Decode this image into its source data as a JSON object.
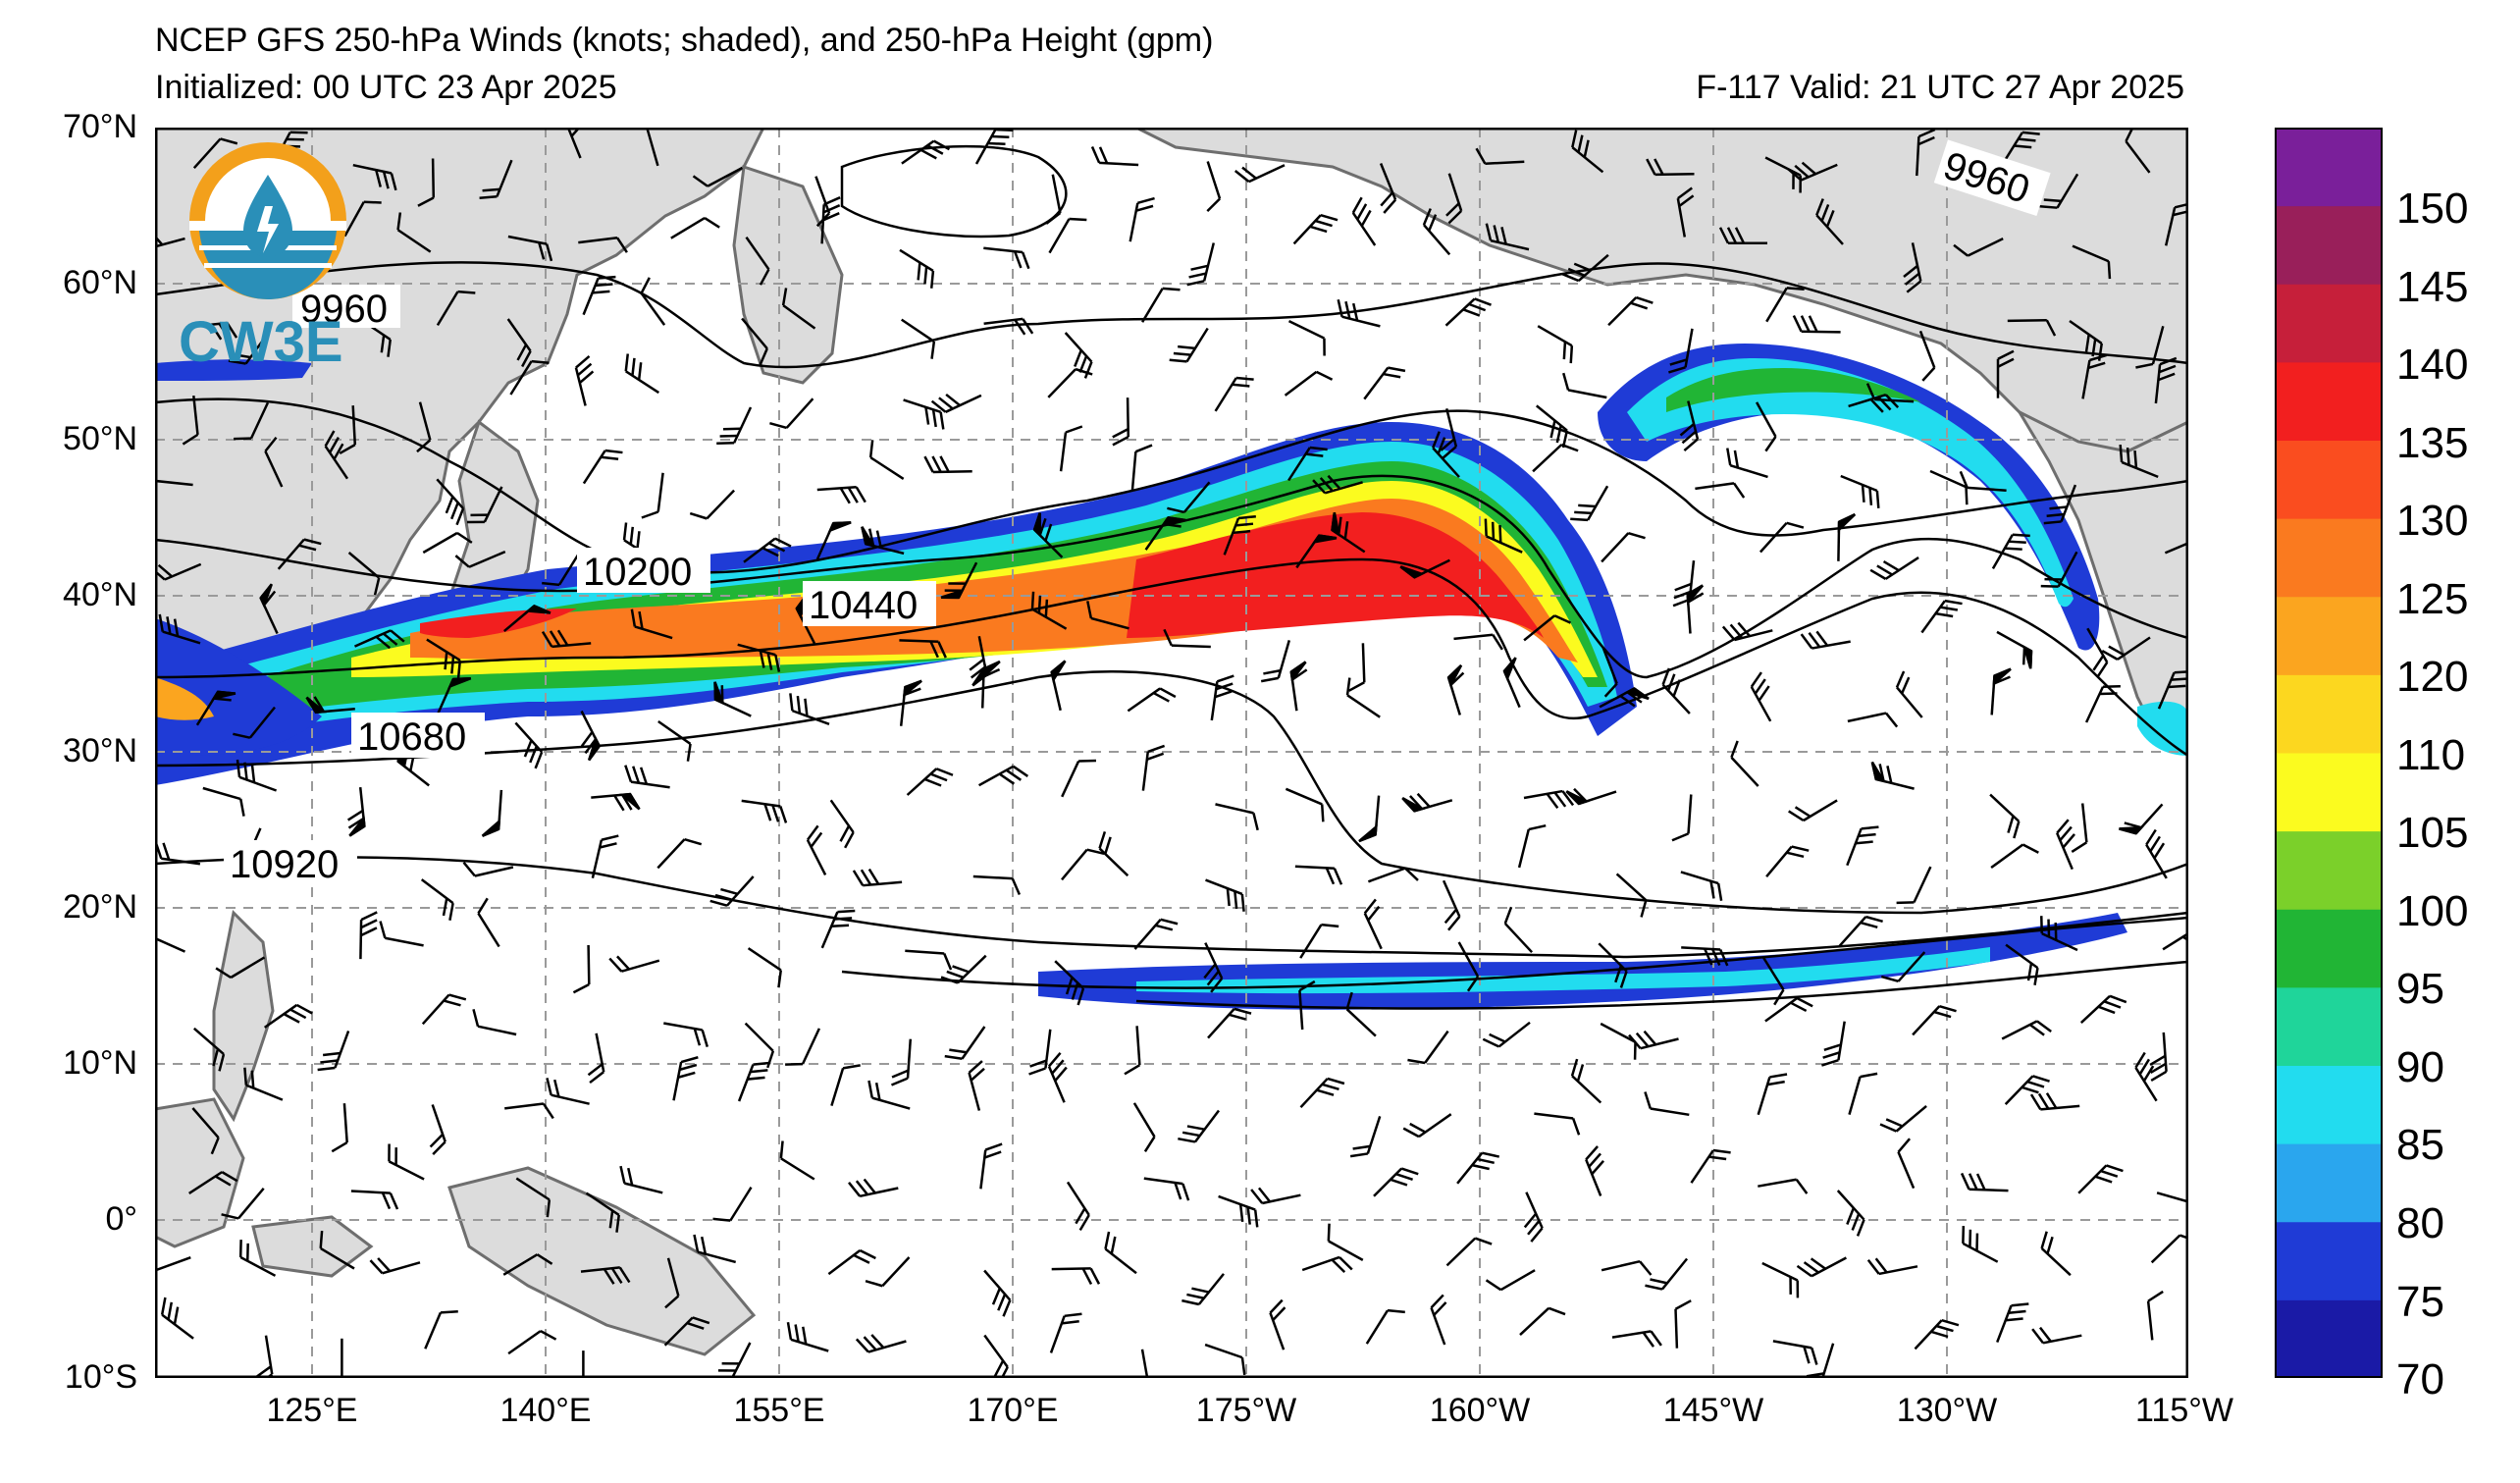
{
  "header": {
    "title": "NCEP GFS 250-hPa Winds (knots; shaded), and 250-hPa Height (gpm)",
    "initialized": "Initialized: 00 UTC 23 Apr 2025",
    "valid": "F-117  Valid: 21 UTC 27 Apr 2025"
  },
  "logo": {
    "text": "CW3E",
    "icon": "cw3e-logo-icon"
  },
  "axes": {
    "lat_labels": [
      "70°N",
      "60°N",
      "50°N",
      "40°N",
      "30°N",
      "20°N",
      "10°N",
      "0°",
      "10°S"
    ],
    "lon_labels": [
      "125°E",
      "140°E",
      "155°E",
      "170°E",
      "175°W",
      "160°W",
      "145°W",
      "130°W",
      "115°W"
    ]
  },
  "colorbar": {
    "labels": [
      "70",
      "75",
      "80",
      "85",
      "90",
      "95",
      "100",
      "105",
      "110",
      "120",
      "125",
      "130",
      "135",
      "140",
      "145",
      "150"
    ],
    "colors": [
      "#1a1aa6",
      "#1f3bd6",
      "#2aa6ee",
      "#22dcef",
      "#1fd59a",
      "#21b535",
      "#7bd02a",
      "#fbfb1f",
      "#fcd71f",
      "#fba51f",
      "#fa7a1f",
      "#fa4d1f",
      "#f21f1f",
      "#c61f3a",
      "#991f5a",
      "#7a1f9a"
    ]
  },
  "contour_labels": [
    "9960",
    "9960",
    "10200",
    "10440",
    "10680",
    "10920"
  ],
  "colors": {
    "land": "#dcdcdc",
    "coast": "#6e6e6e",
    "grid": "#9a9a9a",
    "contour": "#000000"
  }
}
